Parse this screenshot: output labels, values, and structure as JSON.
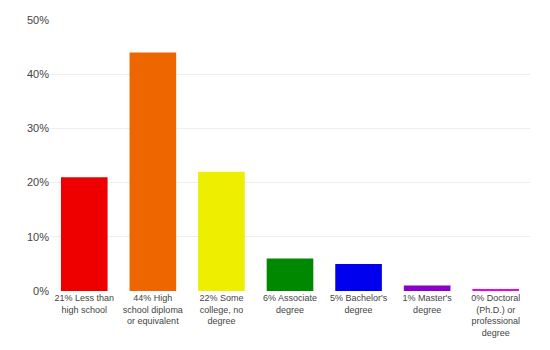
{
  "chart_data": {
    "type": "bar",
    "categories": [
      "21% Less than\nhigh school",
      "44% High\nschool diploma\nor equivalent",
      "22% Some\ncollege, no\ndegree",
      "6% Associate\ndegree",
      "5% Bachelor's\ndegree",
      "1% Master's\ndegree",
      "0% Doctoral\n(Ph.D.) or\nprofessional\ndegree"
    ],
    "values": [
      21,
      44,
      22,
      6,
      5,
      1,
      0.3
    ],
    "colors": [
      "#ee0000",
      "#ee6600",
      "#eeee00",
      "#008800",
      "#0000ee",
      "#8800cc",
      "#ee00ee"
    ],
    "ylim": [
      0,
      50
    ],
    "yticks": [
      {
        "value": 0,
        "label": "0%"
      },
      {
        "value": 10,
        "label": "10%"
      },
      {
        "value": 20,
        "label": "20%"
      },
      {
        "value": 30,
        "label": "30%"
      },
      {
        "value": 40,
        "label": "40%"
      },
      {
        "value": 50,
        "label": "50%"
      }
    ],
    "grid": true
  }
}
